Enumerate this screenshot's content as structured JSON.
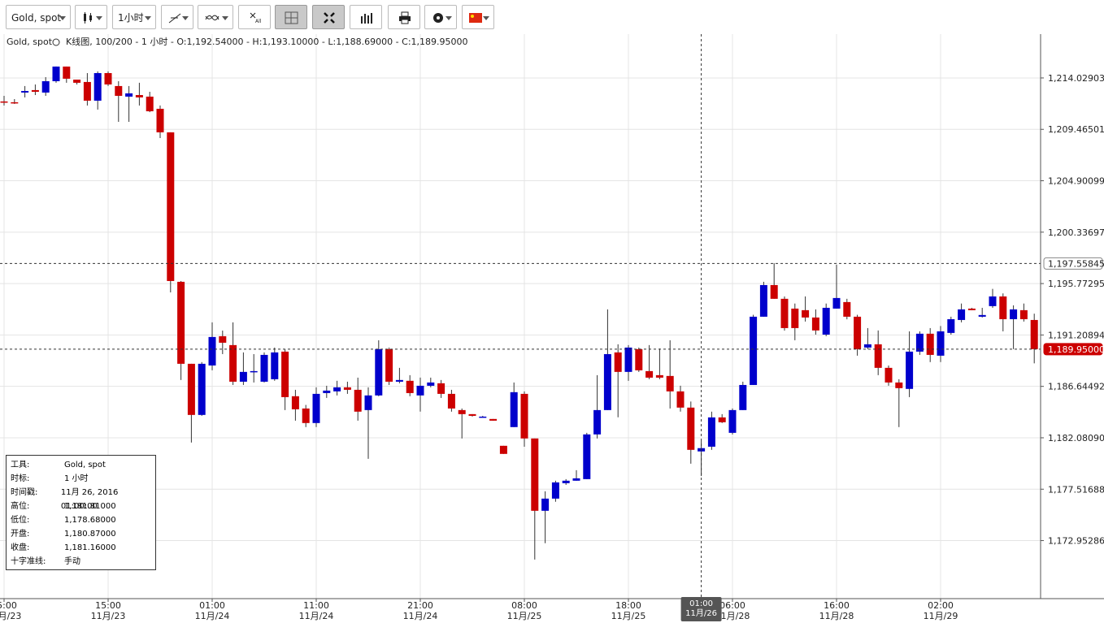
{
  "toolbar": {
    "symbol": "Gold, spot",
    "interval": "1小时"
  },
  "chart_data": {
    "type": "candlestick",
    "header": "Gold, spot",
    "subheader": "K线图, 100/200 - 1 小时 - O:1,192.54000 - H:1,193.10000 - L:1,188.69000 - C:1,189.95000",
    "up_color": "#0000cc",
    "down_color": "#cc0000",
    "grid": true,
    "categories": [
      {
        "time": "05:00",
        "date": "11月/23"
      },
      null,
      null,
      null,
      null,
      null,
      null,
      null,
      null,
      null,
      {
        "time": "15:00",
        "date": "11月/23"
      },
      null,
      null,
      null,
      null,
      null,
      null,
      null,
      null,
      null,
      {
        "time": "01:00",
        "date": "11月/24"
      },
      null,
      null,
      null,
      null,
      null,
      null,
      null,
      null,
      null,
      {
        "time": "11:00",
        "date": "11月/24"
      },
      null,
      null,
      null,
      null,
      null,
      null,
      null,
      null,
      null,
      {
        "time": "21:00",
        "date": "11月/24"
      },
      null,
      null,
      null,
      null,
      null,
      null,
      null,
      null,
      null,
      {
        "time": "08:00",
        "date": "11月/25"
      },
      null,
      null,
      null,
      null,
      null,
      null,
      null,
      null,
      null,
      {
        "time": "18:00",
        "date": "11月/25"
      },
      null,
      null,
      null,
      null,
      null,
      null,
      {
        "time": "01:00",
        "date": "11月/26",
        "highlight": true
      },
      null,
      null,
      {
        "time": "06:00",
        "date": "11月/28"
      },
      null,
      null,
      null,
      null,
      null,
      null,
      null,
      null,
      null,
      {
        "time": "16:00",
        "date": "11月/28"
      },
      null,
      null,
      null,
      null,
      null,
      null,
      null,
      null,
      null,
      {
        "time": "02:00",
        "date": "11月/29"
      },
      null,
      null,
      null,
      null,
      null,
      null,
      null,
      null,
      null
    ],
    "open": [
      1211.94,
      1211.87,
      1212.73,
      1212.95,
      1212.73,
      1213.74,
      1215.04,
      1213.88,
      1213.67,
      1212.01,
      1214.46,
      1213.31,
      1212.37,
      1212.51,
      1212.37,
      1211.29,
      1209.2,
      1195.93,
      1188.65,
      1184.11,
      1188.5,
      1191.1,
      1190.31,
      1187.06,
      1188.0,
      1187.06,
      1187.28,
      1189.73,
      1185.77,
      1184.68,
      1183.39,
      1186.05,
      1186.2,
      1186.56,
      1186.34,
      1184.54,
      1185.84,
      1189.95,
      1187.06,
      1187.14,
      1185.84,
      1186.7,
      1186.92,
      1185.98,
      1184.54,
      1184.18,
      1183.89,
      1183.75,
      1181.37,
      1183.03,
      1185.98,
      1182.02,
      1175.6,
      1176.68,
      1178.05,
      1178.27,
      1178.41,
      1182.38,
      1184.54,
      1189.66,
      1187.93,
      1189.95,
      1188.0,
      1187.64,
      1187.57,
      1186.2,
      1184.76,
      1180.87,
      1181.29,
      1183.89,
      1182.52,
      1184.54,
      1186.77,
      1192.83,
      1195.64,
      1194.42,
      1193.55,
      1193.41,
      1192.76,
      1191.24,
      1193.55,
      1194.13,
      1192.83,
      1190.09,
      1190.38,
      1188.29,
      1186.99,
      1186.42,
      1189.73,
      1191.32,
      1189.37,
      1191.39,
      1192.54,
      1193.55,
      1192.83,
      1193.77,
      1194.63,
      1192.61,
      1193.41,
      1192.54
    ],
    "high": [
      1212.44,
      1212.15,
      1213.31,
      1213.45,
      1214.1,
      1215.04,
      1215.04,
      1213.88,
      1214.46,
      1214.61,
      1214.61,
      1213.74,
      1213.31,
      1213.6,
      1212.8,
      1211.58,
      1209.2,
      1196.0,
      1188.65,
      1188.8,
      1192.33,
      1191.6,
      1192.33,
      1189.66,
      1189.51,
      1189.66,
      1190.09,
      1189.95,
      1186.34,
      1185.0,
      1186.56,
      1186.7,
      1187.14,
      1187.06,
      1187.42,
      1186.56,
      1190.74,
      1190.09,
      1188.29,
      1187.64,
      1187.42,
      1187.42,
      1187.21,
      1186.34,
      1184.68,
      1184.18,
      1184.03,
      1183.75,
      1181.37,
      1186.99,
      1186.2,
      1182.02,
      1177.33,
      1178.27,
      1178.41,
      1179.2,
      1182.52,
      1187.64,
      1193.48,
      1190.38,
      1190.31,
      1190.09,
      1190.31,
      1190.0,
      1190.74,
      1186.7,
      1185.3,
      1181.81,
      1184.4,
      1184.18,
      1184.68,
      1187.06,
      1193.0,
      1195.93,
      1197.59,
      1194.63,
      1194.0,
      1194.63,
      1193.48,
      1194.0,
      1197.45,
      1194.42,
      1193.0,
      1191.82,
      1191.61,
      1188.5,
      1187.28,
      1191.53,
      1191.53,
      1191.82,
      1192.0,
      1192.83,
      1194.0,
      1193.62,
      1193.62,
      1195.3,
      1194.9,
      1193.84,
      1194.0,
      1193.1
    ],
    "low": [
      1211.58,
      1211.72,
      1212.3,
      1212.51,
      1212.44,
      1213.6,
      1213.6,
      1213.45,
      1211.58,
      1211.22,
      1213.31,
      1210.13,
      1210.13,
      1211.58,
      1210.99,
      1208.69,
      1194.99,
      1187.21,
      1181.66,
      1184.03,
      1188.07,
      1189.51,
      1186.77,
      1186.77,
      1186.99,
      1186.99,
      1187.14,
      1184.54,
      1183.6,
      1183.03,
      1183.03,
      1185.62,
      1185.84,
      1185.98,
      1183.6,
      1180.21,
      1185.77,
      1186.77,
      1186.92,
      1185.77,
      1184.4,
      1186.56,
      1185.62,
      1184.4,
      1182.02,
      1183.96,
      1183.89,
      1183.6,
      1180.65,
      1183.03,
      1181.29,
      1171.27,
      1172.72,
      1176.4,
      1177.9,
      1178.27,
      1178.41,
      1182.02,
      1184.54,
      1183.9,
      1187.14,
      1187.93,
      1187.28,
      1187.28,
      1184.68,
      1184.4,
      1179.78,
      1178.68,
      1181.01,
      1183.39,
      1182.38,
      1184.54,
      1186.77,
      1192.83,
      1194.42,
      1191.6,
      1190.74,
      1192.4,
      1191.24,
      1191.1,
      1193.55,
      1192.6,
      1189.37,
      1189.95,
      1187.64,
      1186.7,
      1183.03,
      1185.69,
      1189.44,
      1188.8,
      1188.8,
      1191.24,
      1192.33,
      1193.41,
      1192.76,
      1193.62,
      1191.53,
      1189.95,
      1192.4,
      1188.69
    ],
    "close": [
      1211.87,
      1211.8,
      1212.87,
      1212.8,
      1213.74,
      1215.04,
      1213.96,
      1213.6,
      1212.01,
      1214.46,
      1213.45,
      1212.44,
      1212.66,
      1212.3,
      1211.07,
      1209.2,
      1196.0,
      1188.65,
      1184.11,
      1188.65,
      1191.03,
      1190.52,
      1187.06,
      1187.93,
      1188.0,
      1189.44,
      1189.66,
      1185.69,
      1184.61,
      1183.39,
      1185.98,
      1186.27,
      1186.56,
      1186.34,
      1184.4,
      1185.84,
      1189.95,
      1187.06,
      1187.21,
      1186.05,
      1186.7,
      1186.99,
      1185.98,
      1184.68,
      1184.18,
      1184.03,
      1183.96,
      1183.6,
      1180.65,
      1186.13,
      1182.02,
      1175.6,
      1176.68,
      1178.12,
      1178.27,
      1178.48,
      1182.38,
      1184.54,
      1189.51,
      1187.93,
      1190.09,
      1188.07,
      1187.42,
      1187.42,
      1186.2,
      1184.76,
      1181.01,
      1181.16,
      1183.89,
      1183.46,
      1184.54,
      1186.77,
      1192.83,
      1195.64,
      1194.42,
      1191.82,
      1191.82,
      1192.76,
      1191.61,
      1193.62,
      1194.49,
      1192.83,
      1189.95,
      1190.38,
      1188.29,
      1186.99,
      1186.49,
      1189.73,
      1191.32,
      1189.44,
      1191.53,
      1192.61,
      1193.48,
      1193.41,
      1192.98,
      1194.63,
      1192.61,
      1193.48,
      1192.61,
      1189.95
    ],
    "ylim": [
      1167.8,
      1217.92
    ],
    "yticks": [
      {
        "value": 1172.95286,
        "label": "1,172.95286"
      },
      {
        "value": 1177.51688,
        "label": "1,177.51688"
      },
      {
        "value": 1182.0809,
        "label": "1,182.08090"
      },
      {
        "value": 1186.64492,
        "label": "1,186.64492"
      },
      {
        "value": 1191.20894,
        "label": "1,191.20894"
      },
      {
        "value": 1195.77295,
        "label": "1,195.77295"
      },
      {
        "value": 1200.33697,
        "label": "1,200.33697"
      },
      {
        "value": 1204.90099,
        "label": "1,204.90099"
      },
      {
        "value": 1209.46501,
        "label": "1,209.46501"
      },
      {
        "value": 1214.02903,
        "label": "1,214.02903"
      }
    ],
    "price_markers": [
      {
        "value": 1197.55845,
        "label": "1,197.55845",
        "color": "#ffffff"
      },
      {
        "value": 1189.95,
        "label": "1,189.95000",
        "color": "#cc0000"
      }
    ]
  },
  "info_panel": [
    [
      "工具:",
      "Gold, spot"
    ],
    [
      "时标:",
      "1 小时"
    ],
    [
      "时间戳:",
      "11月 26, 2016 01:00:00"
    ],
    [
      "高位:",
      "1,181.81000"
    ],
    [
      "低位:",
      "1,178.68000"
    ],
    [
      "开盘:",
      "1,180.87000"
    ],
    [
      "收盘:",
      "1,181.16000"
    ],
    [
      "十字准线:",
      "手动"
    ]
  ]
}
